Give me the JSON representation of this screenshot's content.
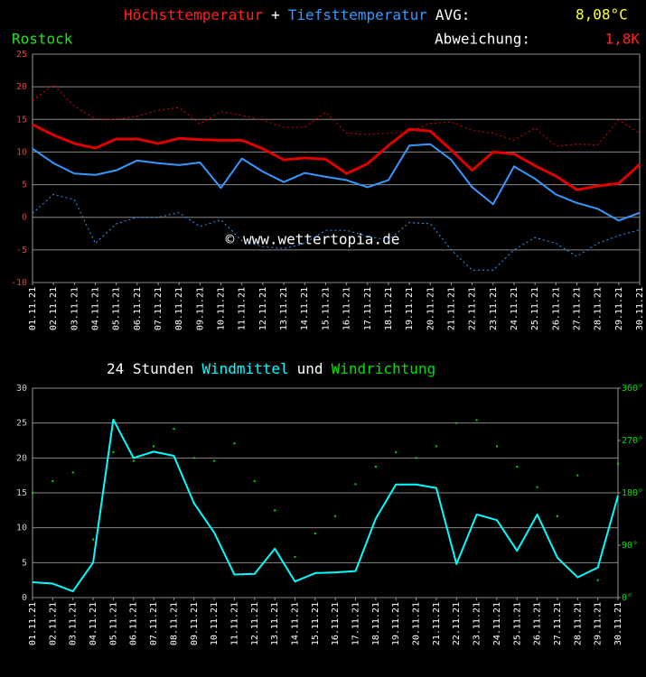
{
  "chart_data": [
    {
      "type": "line",
      "series": [
        {
          "name": "Höchsttemperatur",
          "color": "#e00000",
          "values": [
            14.2,
            12.6,
            11.3,
            10.6,
            12.0,
            12.0,
            11.3,
            12.1,
            11.9,
            11.8,
            11.8,
            10.5,
            8.8,
            9.1,
            8.9,
            6.7,
            8.2,
            11.0,
            13.5,
            13.2,
            10.3,
            7.2,
            10.0,
            9.7,
            7.9,
            6.3,
            4.2,
            4.8,
            5.2,
            8.1
          ]
        },
        {
          "name": "Tiefsttemperatur",
          "color": "#3399ff",
          "values": [
            10.5,
            8.3,
            6.7,
            6.5,
            7.2,
            8.7,
            8.3,
            8.0,
            8.4,
            4.5,
            9.0,
            7.0,
            5.4,
            6.8,
            6.2,
            5.7,
            4.6,
            5.7,
            11.0,
            11.2,
            8.8,
            4.6,
            2.0,
            7.8,
            5.9,
            3.5,
            2.2,
            1.3,
            -0.5,
            0.7
          ]
        },
        {
          "color": "#e00000",
          "dashed": true,
          "values": [
            17.9,
            20.3,
            17.0,
            15.1,
            15.0,
            15.5,
            16.4,
            16.8,
            14.3,
            16.2,
            15.6,
            14.9,
            13.8,
            13.8,
            16.1,
            12.9,
            12.7,
            12.9,
            13.1,
            14.4,
            14.6,
            13.3,
            12.9,
            11.8,
            13.7,
            10.9,
            11.2,
            11.1,
            14.9,
            12.9
          ]
        },
        {
          "color": "#3399ff",
          "dashed": true,
          "values": [
            0.6,
            3.5,
            2.7,
            -4.0,
            -1.0,
            0.0,
            0.0,
            0.7,
            -1.4,
            -0.4,
            -3.6,
            -4.5,
            -4.8,
            -4.0,
            -2.0,
            -2.0,
            -2.9,
            -3.5,
            -0.8,
            -1.0,
            -5.0,
            -8.1,
            -8.1,
            -5.0,
            -3.1,
            -4.0,
            -6.0,
            -4.0,
            -2.8,
            -1.9
          ]
        }
      ],
      "title_joiner": "+",
      "avg_label": "AVG:",
      "avg_value": "8,08°C",
      "location": "Rostock",
      "deviation_label": "Abweichung:",
      "deviation_value": "1,8K",
      "watermark": "© www.wettertopia.de",
      "categories": [
        "01.11.21",
        "02.11.21",
        "03.11.21",
        "04.11.21",
        "05.11.21",
        "06.11.21",
        "07.11.21",
        "08.11.21",
        "09.11.21",
        "10.11.21",
        "11.11.21",
        "12.11.21",
        "13.11.21",
        "14.11.21",
        "15.11.21",
        "16.11.21",
        "17.11.21",
        "18.11.21",
        "19.11.21",
        "20.11.21",
        "21.11.21",
        "22.11.21",
        "23.11.21",
        "24.11.21",
        "25.11.21",
        "26.11.21",
        "27.11.21",
        "28.11.21",
        "29.11.21",
        "30.11.21"
      ],
      "ylim": [
        -10,
        25
      ],
      "yticks": [
        -10,
        -5,
        0,
        5,
        10,
        15,
        20,
        25
      ],
      "grid": true
    },
    {
      "type": "line",
      "title_prefix": "24 Stunden",
      "title_joiner": "und",
      "series": [
        {
          "name": "Windmittel",
          "color": "#00ffff",
          "values": [
            2.2,
            2.0,
            0.9,
            5.0,
            25.5,
            20.0,
            20.9,
            20.3,
            13.5,
            9.3,
            3.3,
            3.4,
            7.0,
            2.3,
            3.5,
            3.6,
            3.8,
            11.3,
            16.2,
            16.2,
            15.7,
            4.8,
            11.9,
            11.1,
            6.7,
            11.9,
            5.7,
            2.9,
            4.3,
            14.6
          ]
        },
        {
          "name": "Windrichtung",
          "color": "#00e000",
          "marker": "dot",
          "axis": "y2",
          "values": [
            180,
            200,
            215,
            100,
            250,
            235,
            260,
            290,
            240,
            235,
            265,
            200,
            150,
            70,
            110,
            140,
            195,
            225,
            250,
            240,
            260,
            300,
            305,
            260,
            225,
            190,
            140,
            210,
            30,
            230
          ]
        }
      ],
      "categories": [
        "01.11.21",
        "02.11.21",
        "03.11.21",
        "04.11.21",
        "05.11.21",
        "06.11.21",
        "07.11.21",
        "08.11.21",
        "09.11.21",
        "10.11.21",
        "11.11.21",
        "12.11.21",
        "13.11.21",
        "14.11.21",
        "15.11.21",
        "16.11.21",
        "17.11.21",
        "18.11.21",
        "19.11.21",
        "20.11.21",
        "21.11.21",
        "22.11.21",
        "23.11.21",
        "24.11.21",
        "25.11.21",
        "26.11.21",
        "27.11.21",
        "28.11.21",
        "29.11.21",
        "30.11.21"
      ],
      "ylim": [
        0,
        30
      ],
      "yticks": [
        0,
        5,
        10,
        15,
        20,
        25,
        30
      ],
      "y2lim": [
        0,
        360
      ],
      "y2ticks": [
        {
          "value": 0,
          "label": "0°"
        },
        {
          "value": 90,
          "label": "90°"
        },
        {
          "value": 180,
          "label": "180°"
        },
        {
          "value": 270,
          "label": "270°"
        },
        {
          "value": 360,
          "label": "360°"
        }
      ],
      "grid": true
    }
  ]
}
